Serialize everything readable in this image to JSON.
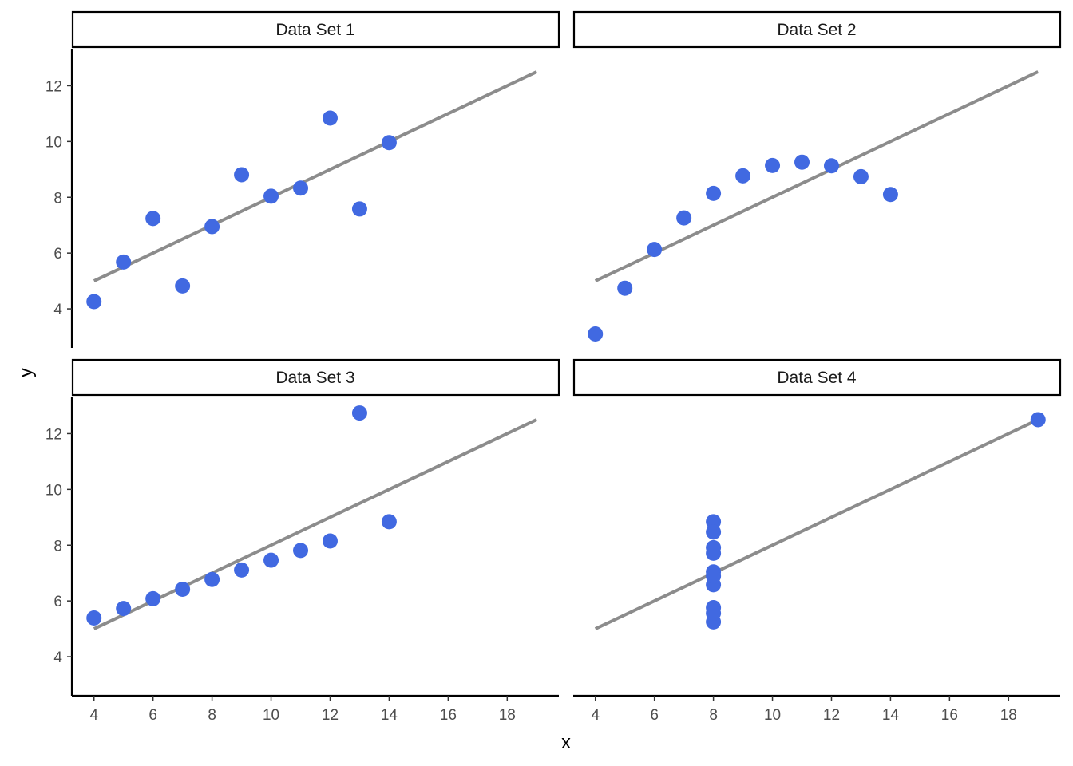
{
  "chart_data": {
    "type": "scatter",
    "layout": "facet-grid-2x2",
    "xlabel": "x",
    "ylabel": "y",
    "xlim": [
      3.25,
      19.75
    ],
    "ylim": [
      2.6,
      13.3
    ],
    "x_ticks": [
      4,
      6,
      8,
      10,
      12,
      14,
      16,
      18
    ],
    "y_ticks": [
      4,
      6,
      8,
      10,
      12
    ],
    "grid": false,
    "point_color": "#4169E1",
    "line_color": "#8C8C8C",
    "regression": {
      "intercept": 3.0,
      "slope": 0.5,
      "x_range": [
        4,
        19
      ]
    },
    "panels": [
      {
        "title": "Data Set 1",
        "x": [
          10,
          8,
          13,
          9,
          11,
          14,
          6,
          4,
          12,
          7,
          5
        ],
        "y": [
          8.04,
          6.95,
          7.58,
          8.81,
          8.33,
          9.96,
          7.24,
          4.26,
          10.84,
          4.82,
          5.68
        ]
      },
      {
        "title": "Data Set 2",
        "x": [
          10,
          8,
          13,
          9,
          11,
          14,
          6,
          4,
          12,
          7,
          5
        ],
        "y": [
          9.14,
          8.14,
          8.74,
          8.77,
          9.26,
          8.1,
          6.13,
          3.1,
          9.13,
          7.26,
          4.74
        ]
      },
      {
        "title": "Data Set 3",
        "x": [
          10,
          8,
          13,
          9,
          11,
          14,
          6,
          4,
          12,
          7,
          5
        ],
        "y": [
          7.46,
          6.77,
          12.74,
          7.11,
          7.81,
          8.84,
          6.08,
          5.39,
          8.15,
          6.42,
          5.73
        ]
      },
      {
        "title": "Data Set 4",
        "x": [
          8,
          8,
          8,
          8,
          8,
          8,
          8,
          19,
          8,
          8,
          8
        ],
        "y": [
          6.58,
          5.76,
          7.71,
          8.84,
          8.47,
          7.04,
          5.25,
          12.5,
          5.56,
          7.91,
          6.89
        ]
      }
    ]
  }
}
